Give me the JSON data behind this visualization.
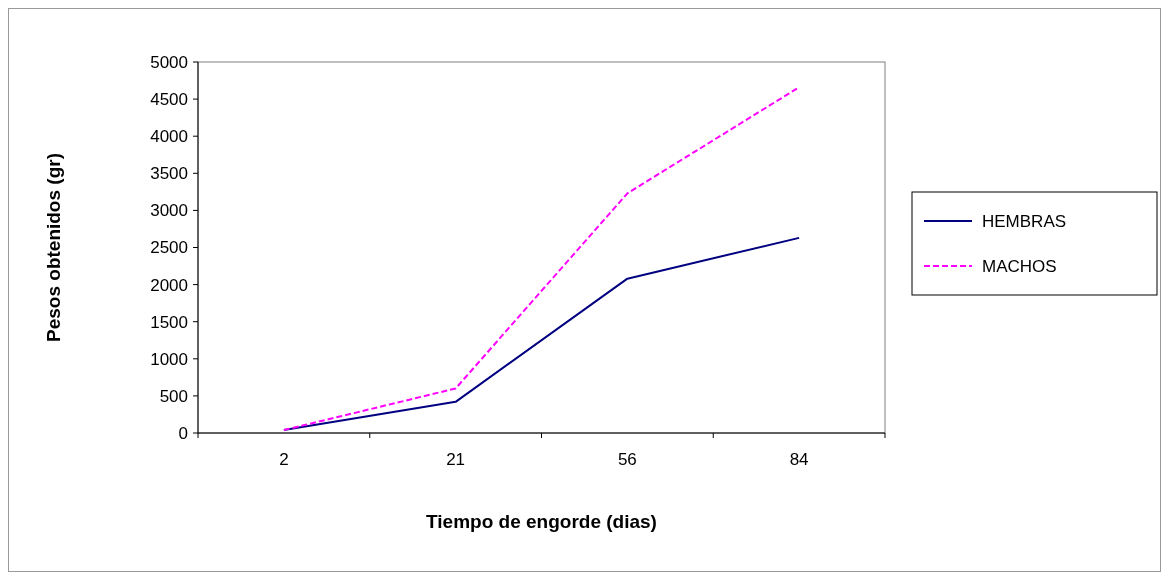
{
  "chart_data": {
    "type": "line",
    "xlabel": "Tiempo de engorde (dias)",
    "ylabel": "Pesos obtenidos (gr)",
    "categories": [
      "2",
      "21",
      "56",
      "84"
    ],
    "series": [
      {
        "name": "HEMBRAS",
        "color": "#000080",
        "values": [
          40,
          420,
          2080,
          2630
        ],
        "line_style": "solid"
      },
      {
        "name": "MACHOS",
        "color": "#ff00ff",
        "values": [
          40,
          600,
          3230,
          4660
        ],
        "line_style": "dashed"
      }
    ],
    "ylim": [
      0,
      5000
    ],
    "yticks": [
      0,
      500,
      1000,
      1500,
      2000,
      2500,
      3000,
      3500,
      4000,
      4500,
      5000
    ],
    "grid": false,
    "legend": "right",
    "marker": "none"
  }
}
